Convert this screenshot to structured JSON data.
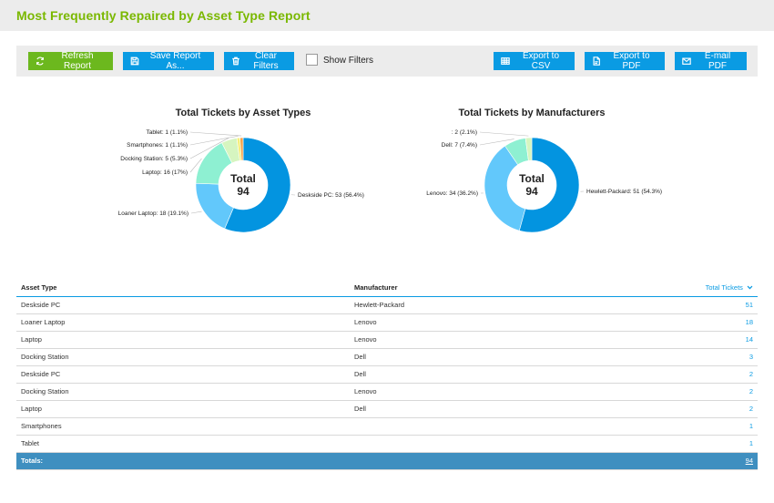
{
  "header": {
    "title": "Most Frequently Repaired by Asset Type Report"
  },
  "toolbar": {
    "refresh_label": "Refresh Report",
    "save_label": "Save Report As...",
    "clear_label": "Clear Filters",
    "show_filters_label": "Show Filters",
    "show_filters_checked": false,
    "export_csv_label": "Export to CSV",
    "export_pdf_label": "Export to PDF",
    "email_pdf_label": "E-mail PDF",
    "colors": {
      "green": "#6cb81e",
      "blue": "#0a9be3"
    }
  },
  "chart_data": [
    {
      "type": "pie",
      "title": "Total Tickets by Asset Types",
      "center_label": "Total",
      "total": "94",
      "slices": [
        {
          "label": "Deskside PC: 53 (56.4%)",
          "value": 53,
          "color": "#0394e0"
        },
        {
          "label": "Loaner Laptop: 18 (19.1%)",
          "value": 18,
          "color": "#62c8fb"
        },
        {
          "label": "Laptop: 16 (17%)",
          "value": 16,
          "color": "#8ef0d2"
        },
        {
          "label": "Docking Station: 5 (5.3%)",
          "value": 5,
          "color": "#d6f5c0"
        },
        {
          "label": "Smartphones: 1 (1.1%)",
          "value": 1,
          "color": "#f6ee7a"
        },
        {
          "label": "Tablet: 1 (1.1%)",
          "value": 1,
          "color": "#f7a24a"
        }
      ]
    },
    {
      "type": "pie",
      "title": "Total Tickets by Manufacturers",
      "center_label": "Total",
      "total": "94",
      "slices": [
        {
          "label": "Hewlett-Packard: 51 (54.3%)",
          "value": 51,
          "color": "#0394e0"
        },
        {
          "label": "Lenovo: 34 (36.2%)",
          "value": 34,
          "color": "#62c8fb"
        },
        {
          "label": "Dell: 7 (7.4%)",
          "value": 7,
          "color": "#8ef0d2"
        },
        {
          "label": ": 2 (2.1%)",
          "value": 2,
          "color": "#d6f5c0"
        }
      ]
    }
  ],
  "table": {
    "headers": {
      "asset_type": "Asset Type",
      "manufacturer": "Manufacturer",
      "total": "Total Tickets"
    },
    "rows": [
      {
        "asset_type": "Deskside PC",
        "manufacturer": "Hewlett-Packard",
        "total": "51"
      },
      {
        "asset_type": "Loaner Laptop",
        "manufacturer": "Lenovo",
        "total": "18"
      },
      {
        "asset_type": "Laptop",
        "manufacturer": "Lenovo",
        "total": "14"
      },
      {
        "asset_type": "Docking Station",
        "manufacturer": "Dell",
        "total": "3"
      },
      {
        "asset_type": "Deskside PC",
        "manufacturer": "Dell",
        "total": "2"
      },
      {
        "asset_type": "Docking Station",
        "manufacturer": "Lenovo",
        "total": "2"
      },
      {
        "asset_type": "Laptop",
        "manufacturer": "Dell",
        "total": "2"
      },
      {
        "asset_type": "Smartphones",
        "manufacturer": "",
        "total": "1"
      },
      {
        "asset_type": "Tablet",
        "manufacturer": "",
        "total": "1"
      }
    ],
    "totals": {
      "label": "Totals:",
      "total": "94"
    }
  }
}
